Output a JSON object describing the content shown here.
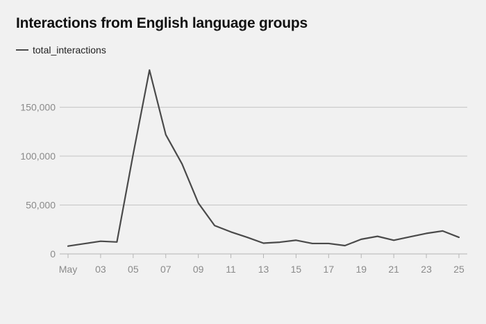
{
  "chart_data": {
    "type": "line",
    "title": "Interactions from English language groups",
    "legend": {
      "placement": "top-left"
    },
    "xlabel": "",
    "ylabel": "",
    "x": [
      "May",
      "02",
      "03",
      "04",
      "05",
      "06",
      "07",
      "08",
      "09",
      "10",
      "11",
      "12",
      "13",
      "14",
      "15",
      "16",
      "17",
      "18",
      "19",
      "20",
      "21",
      "22",
      "23",
      "24",
      "25"
    ],
    "x_tick_labels": [
      "May",
      "03",
      "05",
      "07",
      "09",
      "11",
      "13",
      "15",
      "17",
      "19",
      "21",
      "23",
      "25"
    ],
    "series": [
      {
        "name": "total_interactions",
        "color": "#4a4a4a",
        "values": [
          8000,
          10500,
          13000,
          12200,
          102000,
          188000,
          122000,
          92000,
          52000,
          29000,
          22500,
          17000,
          11000,
          12000,
          14000,
          10700,
          10700,
          8500,
          15000,
          18000,
          14000,
          17500,
          21000,
          23500,
          17000
        ]
      }
    ],
    "ylim": [
      0,
      188000
    ],
    "y_ticks": [
      0,
      50000,
      100000,
      150000
    ],
    "y_tick_labels": [
      "0",
      "50,000",
      "100,000",
      "150,000"
    ],
    "grid": "horizontal"
  }
}
